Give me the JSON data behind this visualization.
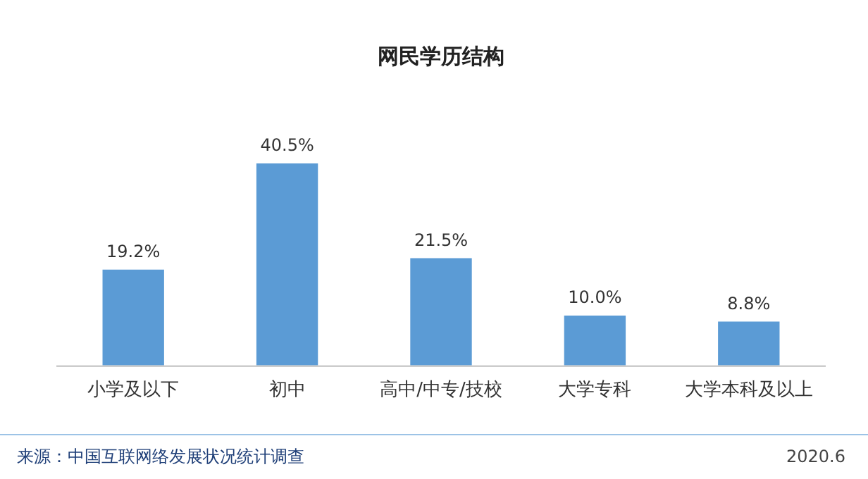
{
  "chart_data": {
    "type": "bar",
    "title": "网民学历结构",
    "categories": [
      "小学及以下",
      "初中",
      "高中/中专/技校",
      "大学专科",
      "大学本科及以上"
    ],
    "values": [
      19.2,
      40.5,
      21.5,
      10.0,
      8.8
    ],
    "value_labels": [
      "19.2%",
      "40.5%",
      "21.5%",
      "10.0%",
      "8.8%"
    ],
    "color": "#5b9bd5",
    "grid": false,
    "legend": false,
    "annotations": [
      "来源：中国互联网络发展状况统计调查",
      "2020.6"
    ]
  }
}
